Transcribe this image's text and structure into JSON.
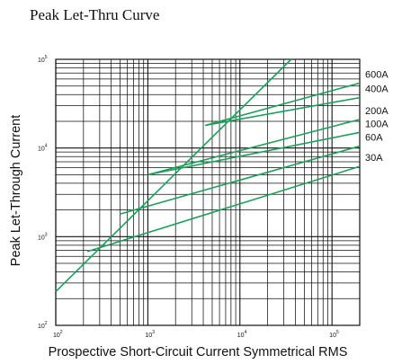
{
  "chart_data": {
    "type": "line",
    "title": "Peak Let-Thru Curve",
    "xlabel": "Prospective Short-Circuit Current Symmetrical RMS",
    "ylabel": "Peak Let-Through Current",
    "x_scale": "log",
    "y_scale": "log",
    "xlim": [
      100,
      200000
    ],
    "ylim": [
      100,
      100000
    ],
    "grid": true,
    "x_ticks": [
      {
        "base": "10",
        "exp": "2",
        "value": 100
      },
      {
        "base": "10",
        "exp": "3",
        "value": 1000
      },
      {
        "base": "10",
        "exp": "4",
        "value": 10000
      },
      {
        "base": "10",
        "exp": "5",
        "value": 100000
      }
    ],
    "y_ticks": [
      {
        "base": "10",
        "exp": "2",
        "value": 100
      },
      {
        "base": "10",
        "exp": "3",
        "value": 1000
      },
      {
        "base": "10",
        "exp": "4",
        "value": 10000
      },
      {
        "base": "10",
        "exp": "5",
        "value": 100000
      }
    ],
    "series_color": "#1aa05a",
    "reference_line": {
      "x": [
        100,
        36000
      ],
      "y": [
        240,
        100000
      ]
    },
    "series": [
      {
        "name": "600A",
        "x": [
          4200,
          200000
        ],
        "y": [
          18000,
          54000
        ]
      },
      {
        "name": "400A",
        "x": [
          4200,
          200000
        ],
        "y": [
          18000,
          37000
        ]
      },
      {
        "name": "200A",
        "x": [
          1000,
          200000
        ],
        "y": [
          5000,
          21000
        ]
      },
      {
        "name": "100A",
        "x": [
          1000,
          200000
        ],
        "y": [
          5000,
          15000
        ]
      },
      {
        "name": "60A",
        "x": [
          500,
          200000
        ],
        "y": [
          1800,
          10500
        ]
      },
      {
        "name": "30A",
        "x": [
          220,
          200000
        ],
        "y": [
          680,
          6200
        ]
      }
    ]
  }
}
